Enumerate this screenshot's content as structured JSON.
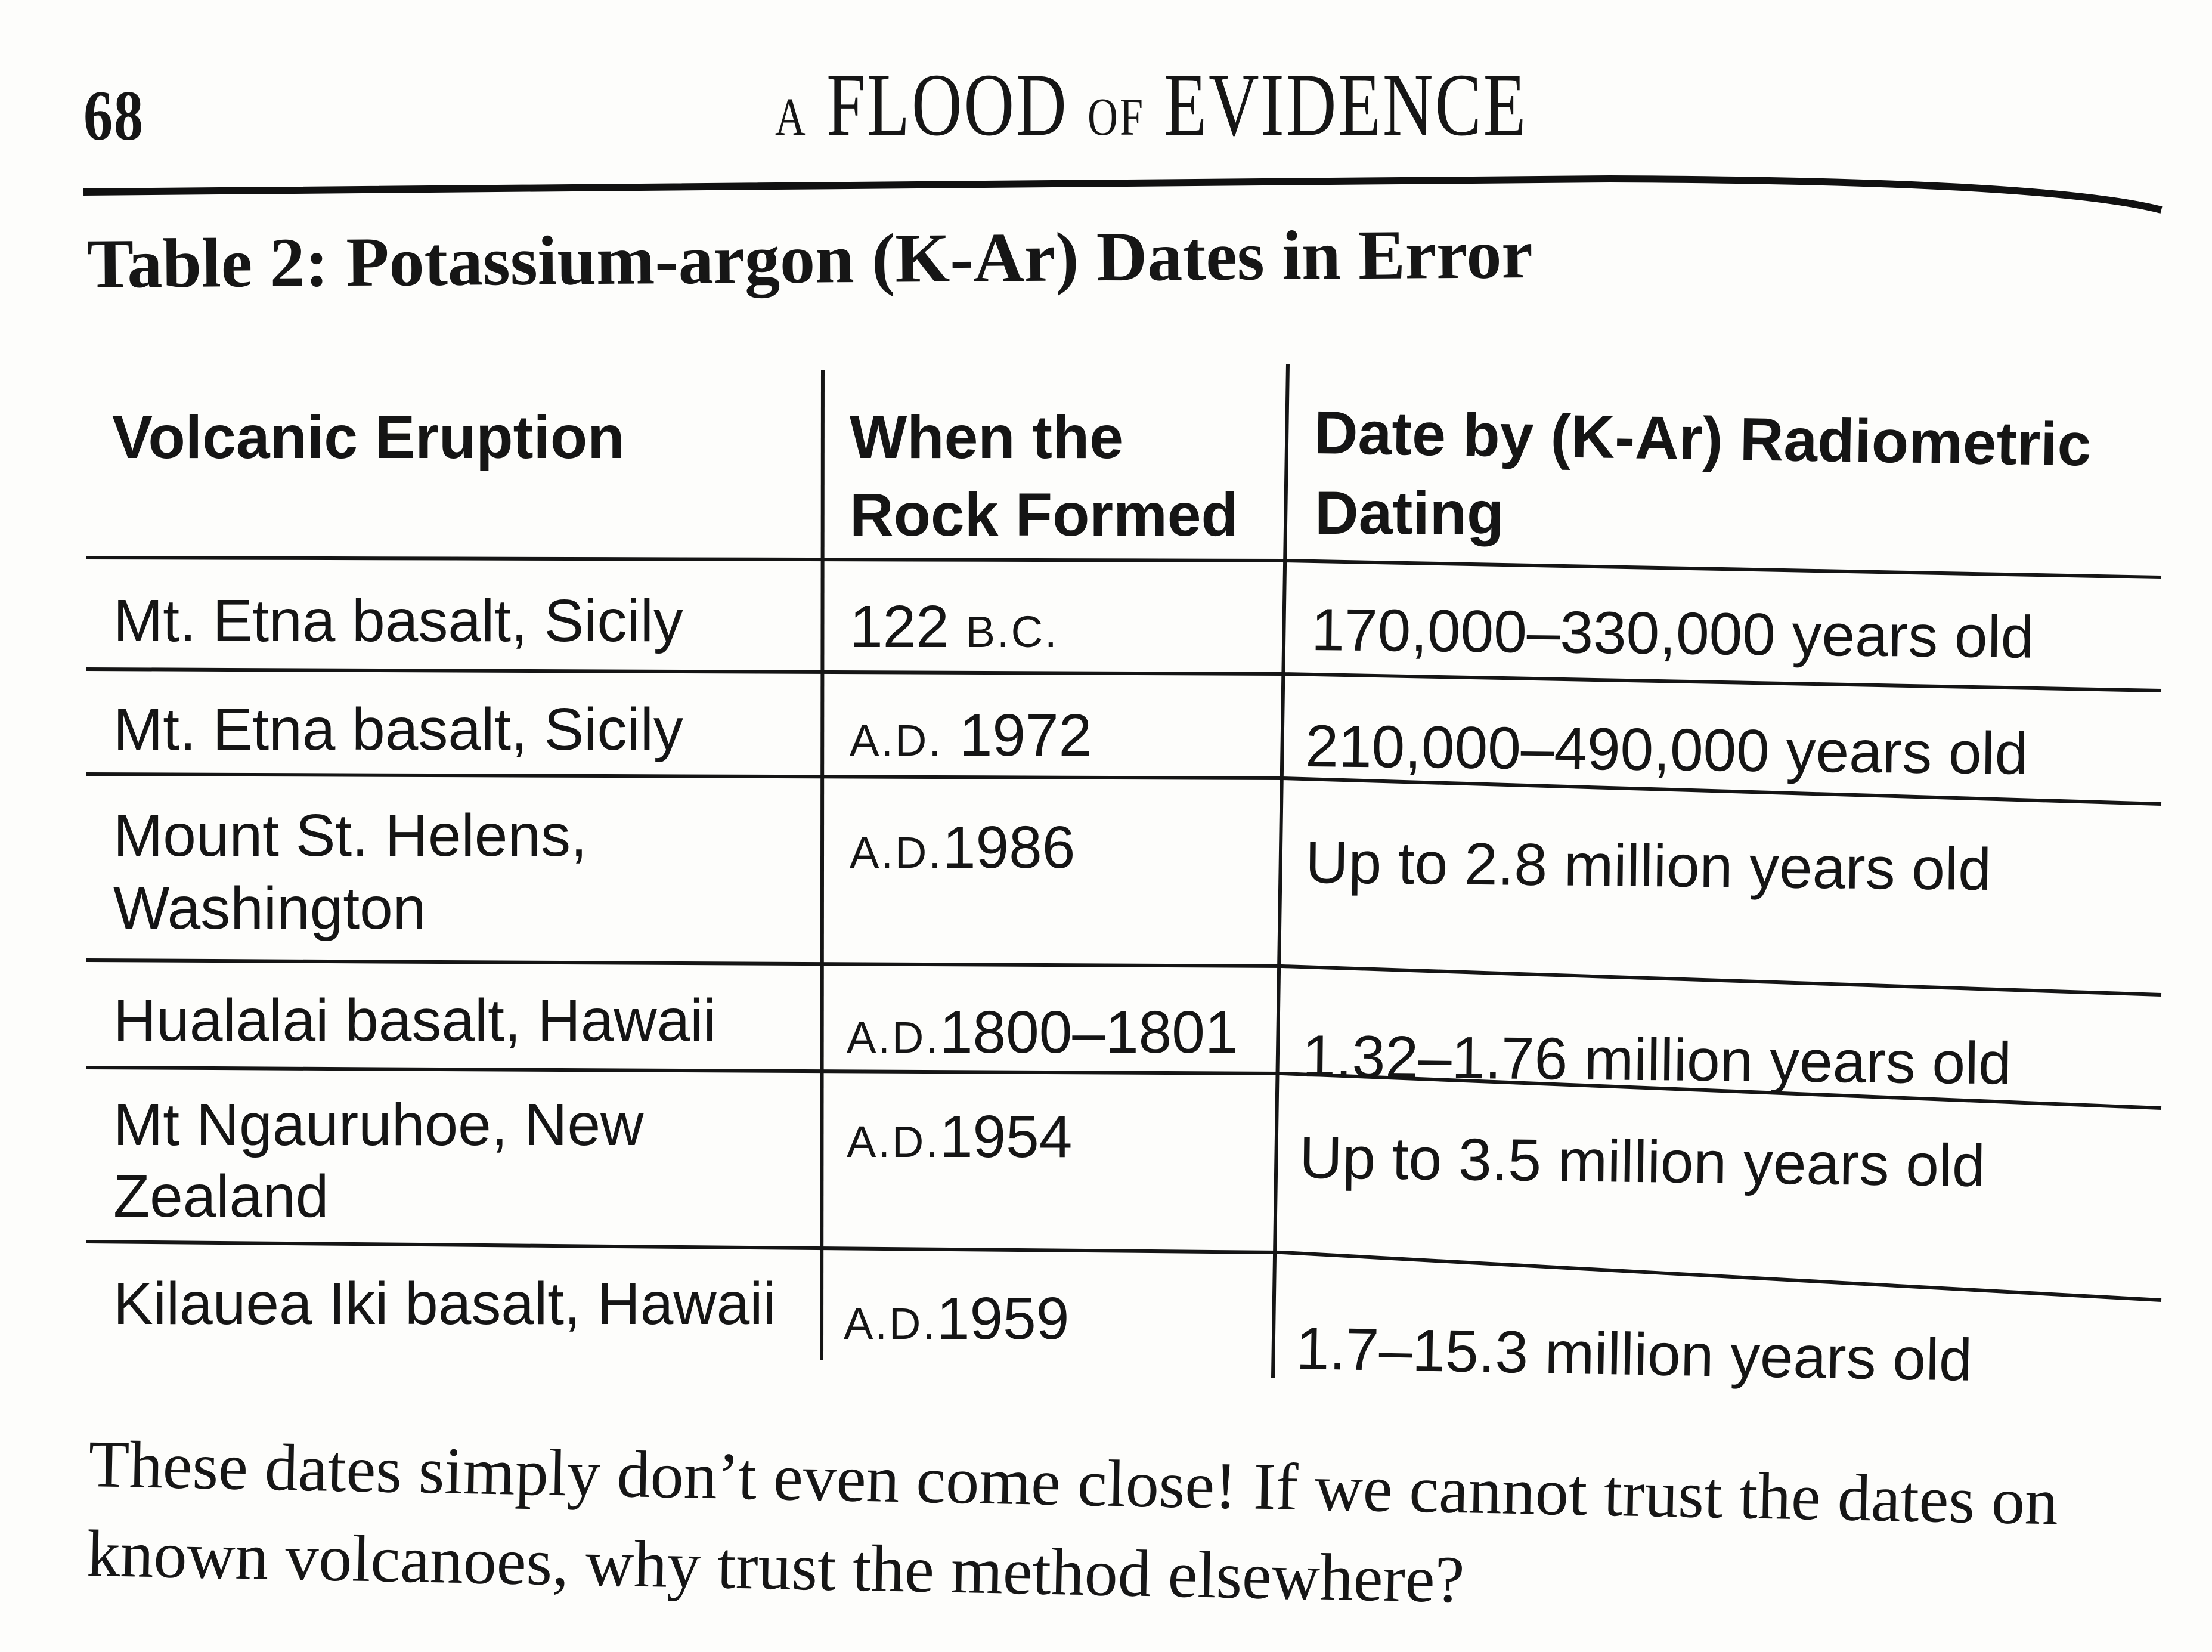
{
  "header": {
    "page_number": "68",
    "running_head_prefix": "A",
    "running_head_word1": "FLOOD",
    "running_head_of": "OF",
    "running_head_word2": "EVIDENCE"
  },
  "table": {
    "title": "Table 2: Potassium-argon (K-Ar) Dates in Error",
    "columns": {
      "c1_line1": "Volcanic Eruption",
      "c2_line1": "When the",
      "c2_line2": "Rock Formed",
      "c3_line1": "Date by (K-Ar) Radiometric",
      "c3_line2": "Dating"
    },
    "rows": [
      {
        "eruption": [
          "Mt. Etna basalt, Sicily"
        ],
        "formed_era": "",
        "formed_value": "122",
        "formed_suffix": "B.C.",
        "date": "170,000–330,000 years old"
      },
      {
        "eruption": [
          "Mt. Etna basalt, Sicily"
        ],
        "formed_era": "A.D.",
        "formed_value": "1972",
        "formed_suffix": "",
        "date": "210,000–490,000 years old"
      },
      {
        "eruption": [
          "Mount St. Helens,",
          "Washington"
        ],
        "formed_era": "A.D.",
        "formed_value": "1986",
        "formed_suffix": "",
        "date": "Up to 2.8 million years old"
      },
      {
        "eruption": [
          "Hualalai basalt, Hawaii"
        ],
        "formed_era": "A.D.",
        "formed_value": "1800–1801",
        "formed_suffix": "",
        "date": "1.32–1.76 million years old"
      },
      {
        "eruption": [
          "Mt Ngauruhoe, New",
          "Zealand"
        ],
        "formed_era": "A.D.",
        "formed_value": "1954",
        "formed_suffix": "",
        "date": "Up to 3.5 million years old"
      },
      {
        "eruption": [
          "Kilauea Iki basalt, Hawaii"
        ],
        "formed_era": "A.D.",
        "formed_value": "1959",
        "formed_suffix": "",
        "date": "1.7–15.3 million years old"
      }
    ]
  },
  "paragraph": {
    "line1": "These dates simply don’t even come close! If we cannot trust the dates on",
    "line2": "known volcanoes, why trust the method elsewhere?"
  }
}
